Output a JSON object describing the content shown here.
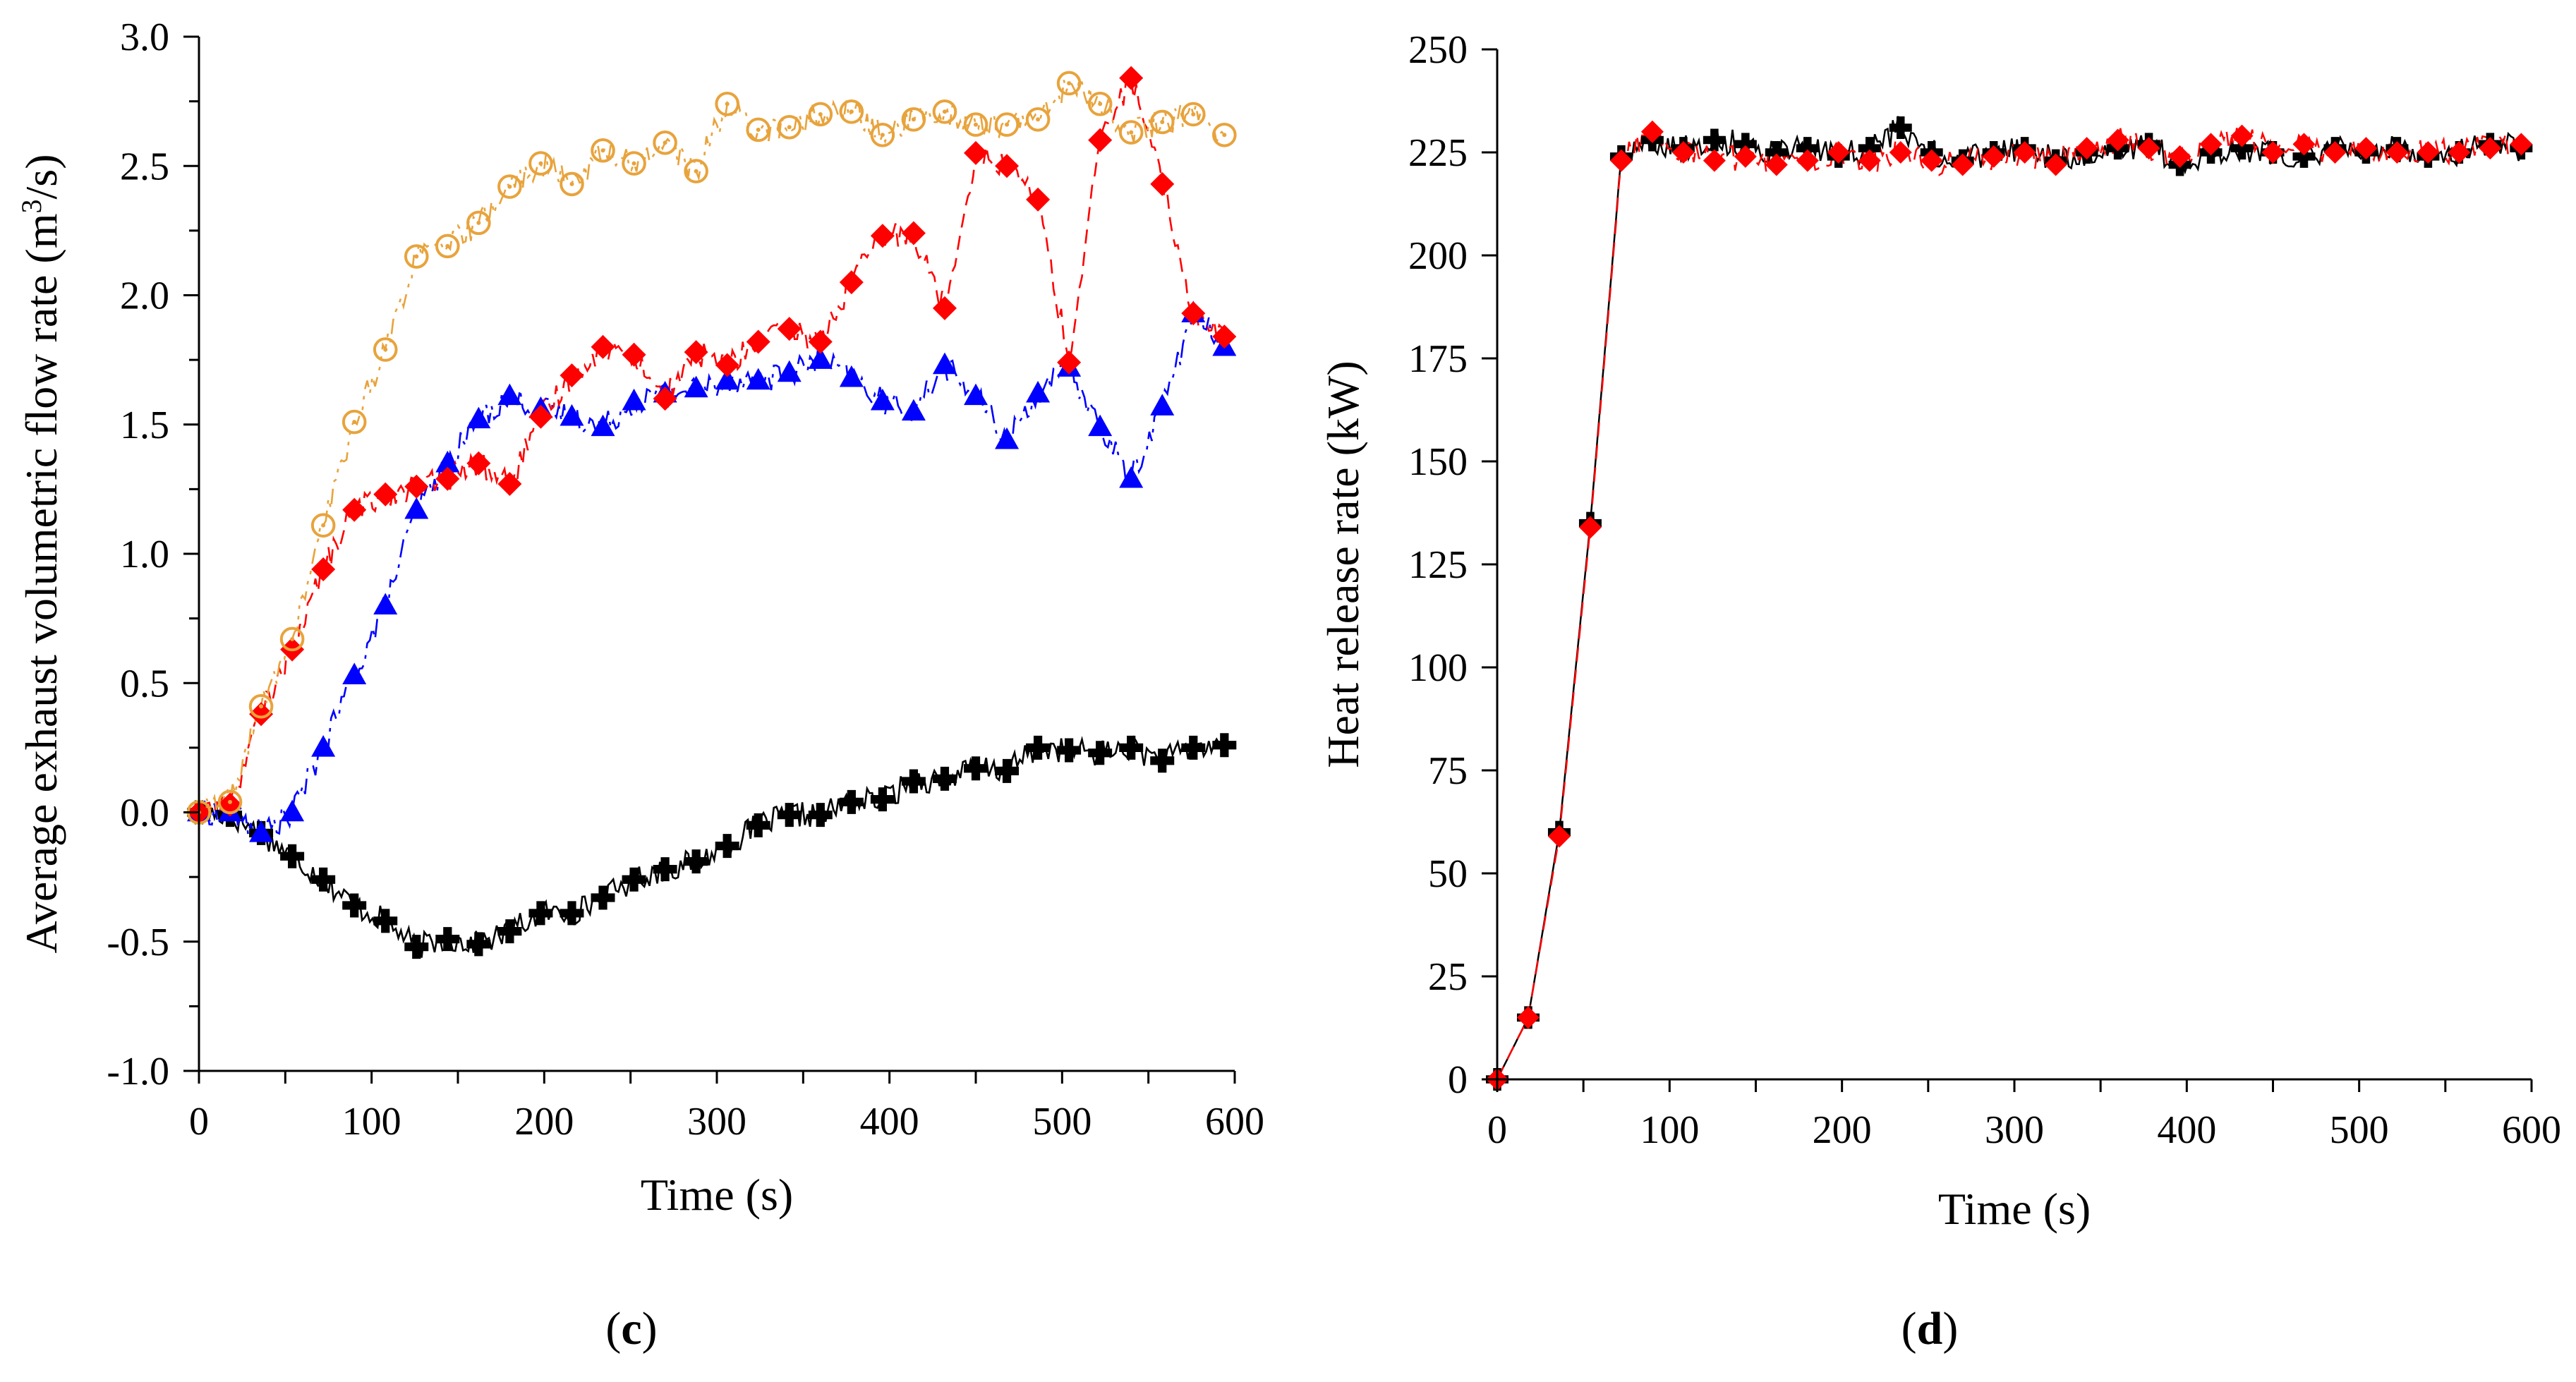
{
  "chart_data": [
    {
      "panel": "c",
      "type": "line",
      "title": "",
      "xlabel": "Time (s)",
      "ylabel_main": "Average exhaust volumetric flow rate (m",
      "ylabel_sup": "3",
      "ylabel_end": "/s)",
      "xlim": [
        0,
        600
      ],
      "ylim": [
        -1.0,
        3.0
      ],
      "xticks": [
        "0",
        "100",
        "200",
        "300",
        "400",
        "500",
        "600"
      ],
      "yticks": [
        "-1.0",
        "-0.5",
        "0.0",
        "0.5",
        "1.0",
        "1.5",
        "2.0",
        "2.5",
        "3.0"
      ],
      "series": [
        {
          "name": "black plus",
          "color": "#000000",
          "marker": "plus",
          "x": [
            0,
            18,
            36,
            54,
            72,
            90,
            108,
            126,
            144,
            162,
            180,
            198,
            216,
            234,
            252,
            270,
            288,
            306,
            324,
            342,
            360,
            378,
            396,
            414,
            432,
            450,
            468,
            486,
            504,
            522,
            540,
            558,
            576,
            594
          ],
          "values": [
            0.0,
            -0.01,
            -0.08,
            -0.17,
            -0.26,
            -0.36,
            -0.42,
            -0.52,
            -0.49,
            -0.51,
            -0.46,
            -0.39,
            -0.39,
            -0.33,
            -0.26,
            -0.22,
            -0.19,
            -0.13,
            -0.05,
            -0.01,
            -0.01,
            0.04,
            0.05,
            0.12,
            0.13,
            0.17,
            0.16,
            0.25,
            0.24,
            0.23,
            0.25,
            0.2,
            0.25,
            0.26
          ]
        },
        {
          "name": "blue triangle",
          "color": "#0000ff",
          "marker": "triangle",
          "x": [
            0,
            18,
            36,
            54,
            72,
            90,
            108,
            126,
            144,
            162,
            180,
            198,
            216,
            234,
            252,
            270,
            288,
            306,
            324,
            342,
            360,
            378,
            396,
            414,
            432,
            450,
            468,
            486,
            504,
            522,
            540,
            558,
            576,
            594
          ],
          "values": [
            0.0,
            0.0,
            -0.08,
            0.0,
            0.25,
            0.53,
            0.8,
            1.17,
            1.35,
            1.52,
            1.61,
            1.56,
            1.53,
            1.49,
            1.59,
            1.62,
            1.64,
            1.67,
            1.67,
            1.7,
            1.75,
            1.68,
            1.59,
            1.55,
            1.73,
            1.61,
            1.44,
            1.62,
            1.72,
            1.49,
            1.29,
            1.57,
            1.93,
            1.8
          ]
        },
        {
          "name": "red diamond",
          "color": "#ff0000",
          "marker": "diamond",
          "x": [
            0,
            18,
            36,
            54,
            72,
            90,
            108,
            126,
            144,
            162,
            180,
            198,
            216,
            234,
            252,
            270,
            288,
            306,
            324,
            342,
            360,
            378,
            396,
            414,
            432,
            450,
            468,
            486,
            504,
            522,
            540,
            558,
            576,
            594
          ],
          "values": [
            0.0,
            0.03,
            0.38,
            0.63,
            0.94,
            1.17,
            1.23,
            1.26,
            1.29,
            1.35,
            1.27,
            1.53,
            1.69,
            1.8,
            1.77,
            1.6,
            1.78,
            1.73,
            1.82,
            1.87,
            1.82,
            2.05,
            2.23,
            2.24,
            1.95,
            2.55,
            2.5,
            2.37,
            1.74,
            2.6,
            2.84,
            2.43,
            1.93,
            1.84
          ]
        },
        {
          "name": "orange circle",
          "color": "#e8a33c",
          "marker": "circle",
          "x": [
            0,
            18,
            36,
            54,
            72,
            90,
            108,
            126,
            144,
            162,
            180,
            198,
            216,
            234,
            252,
            270,
            288,
            306,
            324,
            342,
            360,
            378,
            396,
            414,
            432,
            450,
            468,
            486,
            504,
            522,
            540,
            558,
            576,
            594
          ],
          "values": [
            0.0,
            0.04,
            0.41,
            0.67,
            1.11,
            1.51,
            1.79,
            2.15,
            2.19,
            2.28,
            2.42,
            2.51,
            2.43,
            2.56,
            2.51,
            2.59,
            2.48,
            2.74,
            2.64,
            2.65,
            2.7,
            2.71,
            2.62,
            2.68,
            2.71,
            2.66,
            2.66,
            2.68,
            2.82,
            2.74,
            2.63,
            2.67,
            2.7,
            2.62
          ]
        }
      ]
    },
    {
      "panel": "d",
      "type": "line",
      "title": "",
      "xlabel": "Time (s)",
      "ylabel": "Heat release rate (kW)",
      "xlim": [
        0,
        600
      ],
      "ylim": [
        0,
        250
      ],
      "xticks": [
        "0",
        "100",
        "200",
        "300",
        "400",
        "500",
        "600"
      ],
      "yticks": [
        "0",
        "25",
        "50",
        "75",
        "100",
        "125",
        "150",
        "175",
        "200",
        "225",
        "250"
      ],
      "series": [
        {
          "name": "black plus",
          "color": "#000000",
          "marker": "plus",
          "x": [
            0,
            18,
            36,
            54,
            72,
            90,
            108,
            126,
            144,
            162,
            180,
            198,
            216,
            234,
            252,
            270,
            288,
            306,
            324,
            342,
            360,
            378,
            396,
            414,
            432,
            450,
            468,
            486,
            504,
            522,
            540,
            558,
            576,
            594
          ],
          "values": [
            0,
            15,
            60,
            135,
            224,
            228,
            226,
            228,
            227,
            225,
            226,
            224,
            226,
            231,
            225,
            223,
            225,
            226,
            223,
            225,
            226,
            227,
            222,
            225,
            226,
            225,
            224,
            226,
            225,
            226,
            224,
            225,
            227,
            226
          ]
        },
        {
          "name": "red diamond",
          "color": "#ff0000",
          "marker": "diamond",
          "x": [
            0,
            18,
            36,
            54,
            72,
            90,
            108,
            126,
            144,
            162,
            180,
            198,
            216,
            234,
            252,
            270,
            288,
            306,
            324,
            342,
            360,
            378,
            396,
            414,
            432,
            450,
            468,
            486,
            504,
            522,
            540,
            558,
            576,
            594
          ],
          "values": [
            0,
            15,
            59,
            134,
            223,
            230,
            225,
            223,
            224,
            222,
            223,
            225,
            223,
            225,
            223,
            222,
            224,
            225,
            222,
            226,
            228,
            226,
            224,
            227,
            229,
            225,
            227,
            225,
            226,
            225,
            225,
            225,
            226,
            227
          ]
        }
      ]
    }
  ],
  "panel_labels": {
    "c": {
      "open": "(",
      "letter": "c",
      "close": ")"
    },
    "d": {
      "open": "(",
      "letter": "d",
      "close": ")"
    }
  }
}
